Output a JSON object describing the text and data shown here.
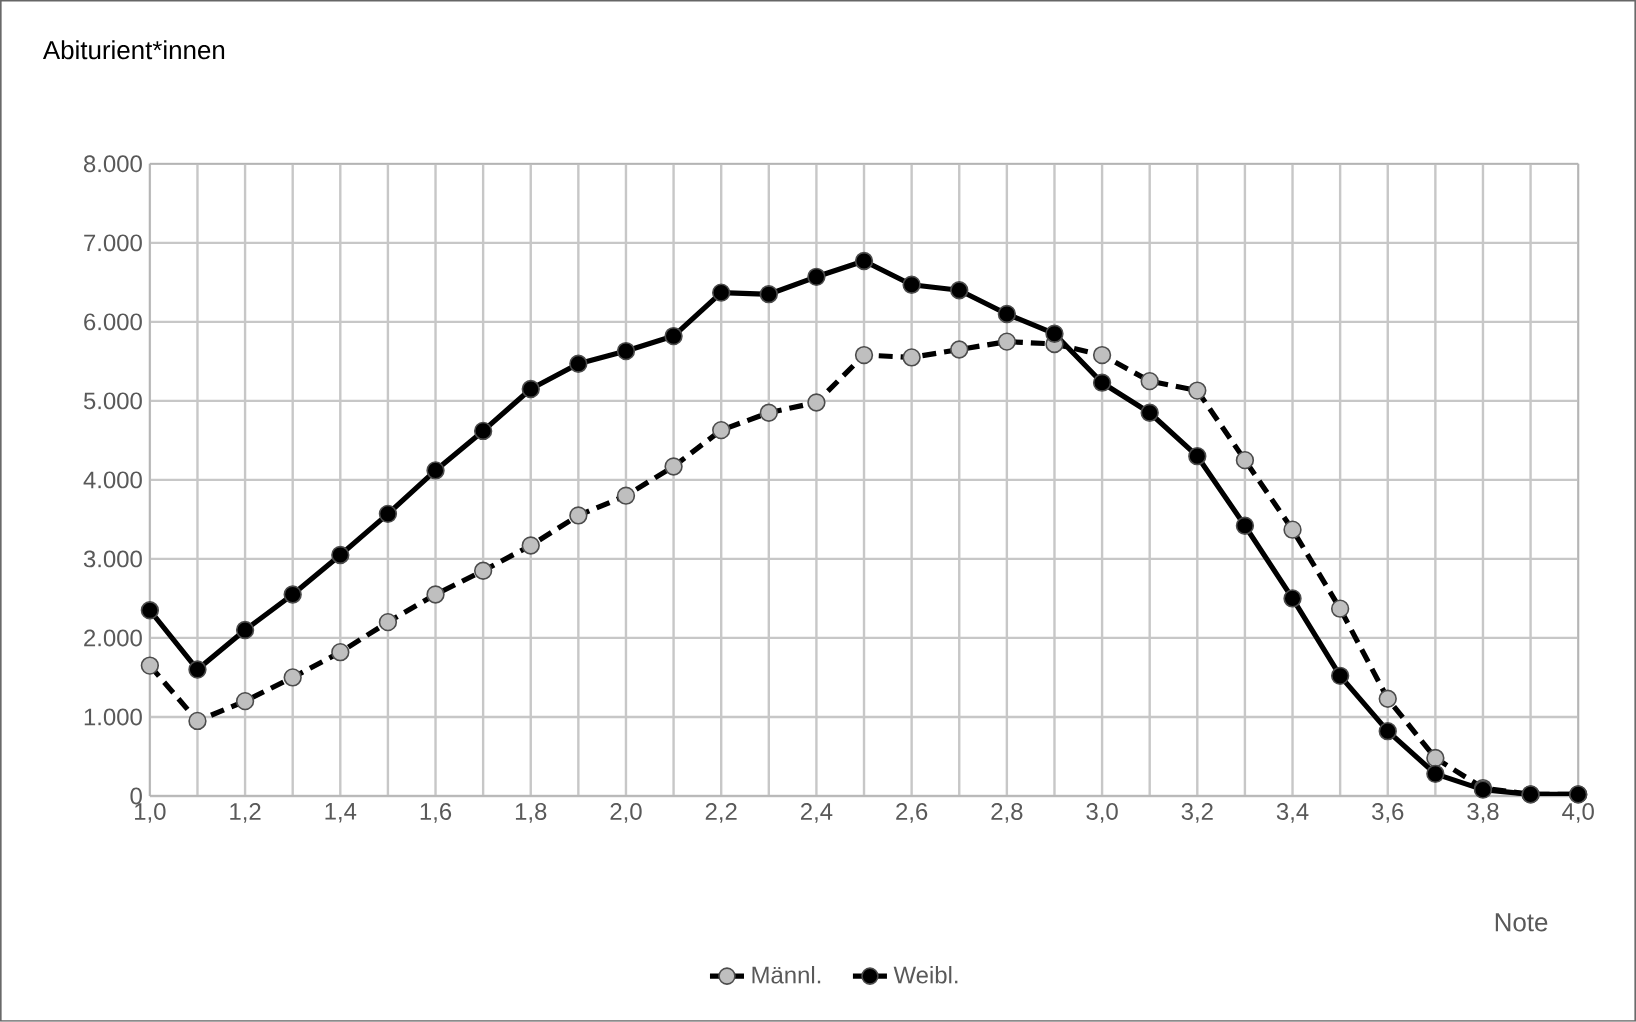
{
  "chart_data": {
    "type": "line",
    "title": "Abiturient*innen",
    "xlabel": "Note",
    "x": [
      1.0,
      1.1,
      1.2,
      1.3,
      1.4,
      1.5,
      1.6,
      1.7,
      1.8,
      1.9,
      2.0,
      2.1,
      2.2,
      2.3,
      2.4,
      2.5,
      2.6,
      2.7,
      2.8,
      2.9,
      3.0,
      3.1,
      3.2,
      3.3,
      3.4,
      3.5,
      3.6,
      3.7,
      3.8,
      3.9,
      4.0
    ],
    "series": [
      {
        "name": "Männl.",
        "color": "#000000",
        "line_style": "dashed",
        "values": [
          1650,
          950,
          1200,
          1500,
          1820,
          2200,
          2550,
          2850,
          3170,
          3550,
          3800,
          4170,
          4630,
          4850,
          4980,
          5580,
          5550,
          5650,
          5750,
          5720,
          5580,
          5250,
          5130,
          4250,
          3370,
          2370,
          1230,
          480,
          100,
          20,
          20
        ]
      },
      {
        "name": "Weibl.",
        "color": "#000000",
        "line_style": "solid",
        "values": [
          2350,
          1600,
          2100,
          2550,
          3050,
          3570,
          4120,
          4620,
          5150,
          5470,
          5630,
          5820,
          6370,
          6350,
          6570,
          6770,
          6470,
          6400,
          6100,
          5850,
          5230,
          4850,
          4300,
          3420,
          2500,
          1520,
          820,
          280,
          80,
          20,
          20
        ]
      }
    ],
    "xlim": [
      1.0,
      4.0
    ],
    "ylim": [
      0,
      8000
    ],
    "xticks": [
      {
        "value": 1.0,
        "label": "1,0"
      },
      {
        "value": 1.1,
        "label": null
      },
      {
        "value": 1.2,
        "label": "1,2"
      },
      {
        "value": 1.3,
        "label": null
      },
      {
        "value": 1.4,
        "label": "1,4"
      },
      {
        "value": 1.5,
        "label": null
      },
      {
        "value": 1.6,
        "label": "1,6"
      },
      {
        "value": 1.7,
        "label": null
      },
      {
        "value": 1.8,
        "label": "1,8"
      },
      {
        "value": 1.9,
        "label": null
      },
      {
        "value": 2.0,
        "label": "2,0"
      },
      {
        "value": 2.1,
        "label": null
      },
      {
        "value": 2.2,
        "label": "2,2"
      },
      {
        "value": 2.3,
        "label": null
      },
      {
        "value": 2.4,
        "label": "2,4"
      },
      {
        "value": 2.5,
        "label": null
      },
      {
        "value": 2.6,
        "label": "2,6"
      },
      {
        "value": 2.7,
        "label": null
      },
      {
        "value": 2.8,
        "label": "2,8"
      },
      {
        "value": 2.9,
        "label": null
      },
      {
        "value": 3.0,
        "label": "3,0"
      },
      {
        "value": 3.1,
        "label": null
      },
      {
        "value": 3.2,
        "label": "3,2"
      },
      {
        "value": 3.3,
        "label": null
      },
      {
        "value": 3.4,
        "label": "3,4"
      },
      {
        "value": 3.5,
        "label": null
      },
      {
        "value": 3.6,
        "label": "3,6"
      },
      {
        "value": 3.7,
        "label": null
      },
      {
        "value": 3.8,
        "label": "3,8"
      },
      {
        "value": 3.9,
        "label": null
      },
      {
        "value": 4.0,
        "label": "4,0"
      }
    ],
    "yticks": [
      0,
      {
        "value": 1000,
        "label": "1.000"
      },
      {
        "value": 2000,
        "label": "2.000"
      },
      {
        "value": 3000,
        "label": "3.000"
      },
      {
        "value": 4000,
        "label": "4.000"
      },
      {
        "value": 5000,
        "label": "5.000"
      },
      {
        "value": 6000,
        "label": "6.000"
      },
      {
        "value": 7000,
        "label": "7.000"
      },
      {
        "value": 8000,
        "label": "8.000"
      }
    ],
    "grid": true,
    "legend": "bottom",
    "marker": "circle"
  }
}
